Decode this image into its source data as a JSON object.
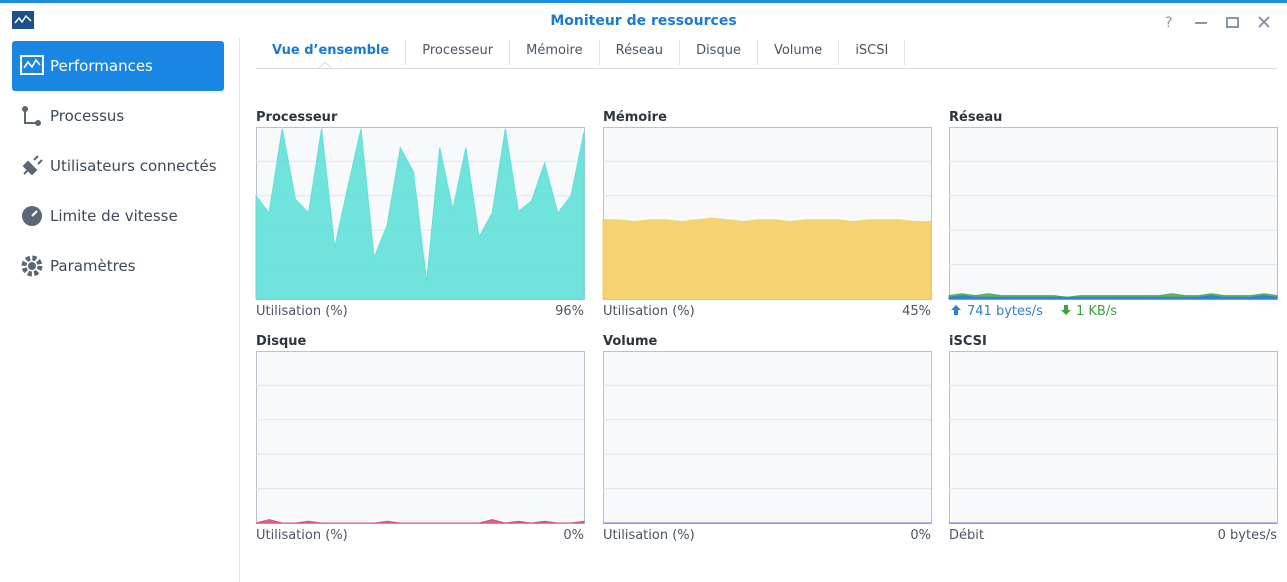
{
  "window": {
    "title": "Moniteur de ressources"
  },
  "sidebar": {
    "items": [
      "Performances",
      "Processus",
      "Utilisateurs connectés",
      "Limite de vitesse",
      "Paramètres"
    ]
  },
  "tabs": [
    "Vue d’ensemble",
    "Processeur",
    "Mémoire",
    "Réseau",
    "Disque",
    "Volume",
    "iSCSI"
  ],
  "scale": {
    "ylim": [
      0,
      100
    ],
    "yticks": [
      0,
      20,
      40,
      60,
      80,
      100
    ]
  },
  "panels": [
    {
      "title": "Processeur",
      "footer_left": "Utilisation (%)",
      "footer_right": "96%",
      "series": [
        {
          "color": "#5fe0d8",
          "values": [
            60,
            50,
            99,
            58,
            50,
            99,
            30,
            65,
            99,
            24,
            43,
            88,
            74,
            10,
            88,
            52,
            88,
            36,
            50,
            99,
            51,
            57,
            79,
            50,
            60,
            97
          ]
        }
      ]
    },
    {
      "title": "Mémoire",
      "footer_left": "Utilisation (%)",
      "footer_right": "45%",
      "series": [
        {
          "color": "#f6cd64",
          "values": [
            46,
            46,
            45,
            46,
            46,
            45,
            46,
            47,
            46,
            45,
            46,
            46,
            45,
            46,
            46,
            46,
            45,
            46,
            46,
            46,
            45,
            45
          ]
        }
      ]
    },
    {
      "title": "Réseau",
      "footer_up": "741 bytes/s",
      "footer_down": "1 KB/s",
      "series": [
        {
          "color": "#4caf50",
          "values": [
            2,
            3,
            2,
            3,
            2,
            2,
            2,
            2,
            2,
            1,
            2,
            2,
            2,
            2,
            2,
            2,
            2,
            3,
            2,
            2,
            3,
            2,
            2,
            2,
            3,
            2
          ]
        },
        {
          "color": "#2f7fd6",
          "values": [
            1,
            2,
            1,
            1,
            1,
            1,
            1,
            1,
            1,
            1,
            1,
            1,
            1,
            1,
            1,
            1,
            1,
            1,
            1,
            1,
            2,
            1,
            1,
            1,
            2,
            1
          ]
        }
      ]
    },
    {
      "title": "Disque",
      "footer_left": "Utilisation (%)",
      "footer_right": "0%",
      "series": [
        {
          "color": "#d8527a",
          "values": [
            0,
            2,
            0,
            0,
            1,
            0,
            0,
            0,
            0,
            0,
            1,
            0,
            0,
            0,
            0,
            0,
            0,
            0,
            2,
            0,
            1,
            0,
            1,
            0,
            0,
            1
          ]
        }
      ]
    },
    {
      "title": "Volume",
      "footer_left": "Utilisation (%)",
      "footer_right": "0%",
      "series": [
        {
          "color": "#7c6bd6",
          "values": [
            0,
            0,
            0,
            0,
            0,
            0,
            0,
            0,
            0,
            0
          ]
        }
      ]
    },
    {
      "title": "iSCSI",
      "footer_left": "Débit",
      "footer_right": "0 bytes/s",
      "series": [
        {
          "color": "#7c6bd6",
          "values": [
            0,
            0,
            0,
            0,
            0,
            0,
            0,
            0,
            0,
            0
          ]
        }
      ]
    }
  ]
}
